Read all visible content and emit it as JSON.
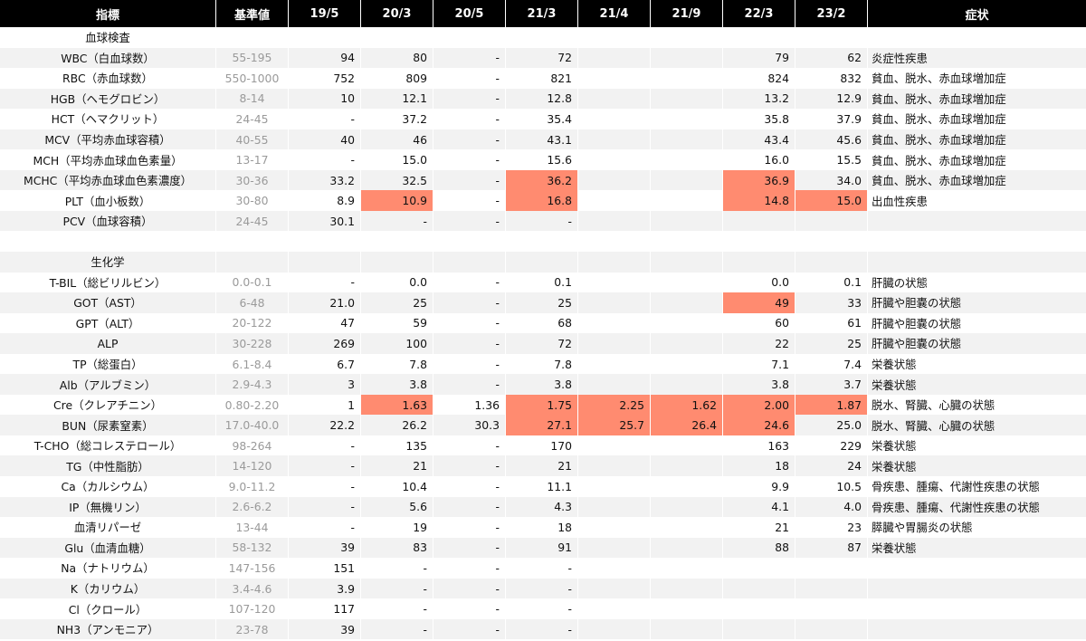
{
  "header": {
    "name": "指標",
    "ref": "基準値",
    "dates": [
      "19/5",
      "20/3",
      "20/5",
      "21/3",
      "21/4",
      "21/9",
      "22/3",
      "23/2"
    ],
    "symptom": "症状"
  },
  "highlight_color": "#ff8b70",
  "rows": [
    {
      "name": "血球検査",
      "ref": "",
      "values": [
        "",
        "",
        "",
        "",
        "",
        "",
        "",
        ""
      ],
      "highlight": [],
      "symptom": ""
    },
    {
      "name": "WBC（白血球数）",
      "ref": "55-195",
      "values": [
        "94",
        "80",
        "-",
        "72",
        "",
        "",
        "79",
        "62"
      ],
      "highlight": [],
      "symptom": "炎症性疾患"
    },
    {
      "name": "RBC（赤血球数）",
      "ref": "550-1000",
      "values": [
        "752",
        "809",
        "-",
        "821",
        "",
        "",
        "824",
        "832"
      ],
      "highlight": [],
      "symptom": "貧血、脱水、赤血球増加症"
    },
    {
      "name": "HGB（ヘモグロビン）",
      "ref": "8-14",
      "values": [
        "10",
        "12.1",
        "-",
        "12.8",
        "",
        "",
        "13.2",
        "12.9"
      ],
      "highlight": [],
      "symptom": "貧血、脱水、赤血球増加症"
    },
    {
      "name": "HCT（ヘマクリット）",
      "ref": "24-45",
      "values": [
        "-",
        "37.2",
        "-",
        "35.4",
        "",
        "",
        "35.8",
        "37.9"
      ],
      "highlight": [],
      "symptom": "貧血、脱水、赤血球増加症"
    },
    {
      "name": "MCV（平均赤血球容積）",
      "ref": "40-55",
      "values": [
        "40",
        "46",
        "-",
        "43.1",
        "",
        "",
        "43.4",
        "45.6"
      ],
      "highlight": [],
      "symptom": "貧血、脱水、赤血球増加症"
    },
    {
      "name": "MCH（平均赤血球血色素量）",
      "ref": "13-17",
      "values": [
        "-",
        "15.0",
        "-",
        "15.6",
        "",
        "",
        "16.0",
        "15.5"
      ],
      "highlight": [],
      "symptom": "貧血、脱水、赤血球増加症"
    },
    {
      "name": "MCHC（平均赤血球血色素濃度）",
      "ref": "30-36",
      "values": [
        "33.2",
        "32.5",
        "-",
        "36.2",
        "",
        "",
        "36.9",
        "34.0"
      ],
      "highlight": [
        3,
        6
      ],
      "symptom": "貧血、脱水、赤血球増加症"
    },
    {
      "name": "PLT（血小板数）",
      "ref": "30-80",
      "values": [
        "8.9",
        "10.9",
        "-",
        "16.8",
        "",
        "",
        "14.8",
        "15.0"
      ],
      "highlight": [
        1,
        3,
        6,
        7
      ],
      "symptom": "出血性疾患"
    },
    {
      "name": "PCV（血球容積）",
      "ref": "24-45",
      "values": [
        "30.1",
        "-",
        "-",
        "-",
        "",
        "",
        "",
        ""
      ],
      "highlight": [],
      "symptom": ""
    },
    {
      "name": "",
      "ref": "",
      "values": [
        "",
        "",
        "",
        "",
        "",
        "",
        "",
        ""
      ],
      "highlight": [],
      "symptom": ""
    },
    {
      "name": "生化学",
      "ref": "",
      "values": [
        "",
        "",
        "",
        "",
        "",
        "",
        "",
        ""
      ],
      "highlight": [],
      "symptom": ""
    },
    {
      "name": "T-BIL（総ビリルビン）",
      "ref": "0.0-0.1",
      "values": [
        "-",
        "0.0",
        "-",
        "0.1",
        "",
        "",
        "0.0",
        "0.1"
      ],
      "highlight": [],
      "symptom": "肝臓の状態"
    },
    {
      "name": "GOT（AST）",
      "ref": "6-48",
      "values": [
        "21.0",
        "25",
        "-",
        "25",
        "",
        "",
        "49",
        "33"
      ],
      "highlight": [
        6
      ],
      "symptom": "肝臓や胆嚢の状態"
    },
    {
      "name": "GPT（ALT）",
      "ref": "20-122",
      "values": [
        "47",
        "59",
        "-",
        "68",
        "",
        "",
        "60",
        "61"
      ],
      "highlight": [],
      "symptom": "肝臓や胆嚢の状態"
    },
    {
      "name": "ALP",
      "ref": "30-228",
      "values": [
        "269",
        "100",
        "-",
        "72",
        "",
        "",
        "22",
        "25"
      ],
      "highlight": [],
      "symptom": "肝臓や胆嚢の状態"
    },
    {
      "name": "TP（総蛋白）",
      "ref": "6.1-8.4",
      "values": [
        "6.7",
        "7.8",
        "-",
        "7.8",
        "",
        "",
        "7.1",
        "7.4"
      ],
      "highlight": [],
      "symptom": "栄養状態"
    },
    {
      "name": "Alb（アルブミン）",
      "ref": "2.9-4.3",
      "values": [
        "3",
        "3.8",
        "-",
        "3.8",
        "",
        "",
        "3.8",
        "3.7"
      ],
      "highlight": [],
      "symptom": "栄養状態"
    },
    {
      "name": "Cre（クレアチニン）",
      "ref": "0.80-2.20",
      "values": [
        "1",
        "1.63",
        "1.36",
        "1.75",
        "2.25",
        "1.62",
        "2.00",
        "1.87"
      ],
      "highlight": [
        1,
        3,
        4,
        5,
        6,
        7
      ],
      "symptom": "脱水、腎臓、心臓の状態"
    },
    {
      "name": "BUN（尿素窒素）",
      "ref": "17.0-40.0",
      "values": [
        "22.2",
        "26.2",
        "30.3",
        "27.1",
        "25.7",
        "26.4",
        "24.6",
        "25.0"
      ],
      "highlight": [
        3,
        4,
        5,
        6
      ],
      "symptom": "脱水、腎臓、心臓の状態"
    },
    {
      "name": "T-CHO（総コレステロール）",
      "ref": "98-264",
      "values": [
        "-",
        "135",
        "-",
        "170",
        "",
        "",
        "163",
        "229"
      ],
      "highlight": [],
      "symptom": "栄養状態"
    },
    {
      "name": "TG（中性脂肪）",
      "ref": "14-120",
      "values": [
        "-",
        "21",
        "-",
        "21",
        "",
        "",
        "18",
        "24"
      ],
      "highlight": [],
      "symptom": "栄養状態"
    },
    {
      "name": "Ca（カルシウム）",
      "ref": "9.0-11.2",
      "values": [
        "-",
        "10.4",
        "-",
        "11.1",
        "",
        "",
        "9.9",
        "10.5"
      ],
      "highlight": [],
      "symptom": "骨疾患、腫瘍、代謝性疾患の状態"
    },
    {
      "name": "IP（無機リン）",
      "ref": "2.6-6.2",
      "values": [
        "-",
        "5.6",
        "-",
        "4.3",
        "",
        "",
        "4.1",
        "4.0"
      ],
      "highlight": [],
      "symptom": "骨疾患、腫瘍、代謝性疾患の状態"
    },
    {
      "name": "血清リパーゼ",
      "ref": "13-44",
      "values": [
        "-",
        "19",
        "-",
        "18",
        "",
        "",
        "21",
        "23"
      ],
      "highlight": [],
      "symptom": "膵臓や胃腸炎の状態"
    },
    {
      "name": "Glu（血清血糖）",
      "ref": "58-132",
      "values": [
        "39",
        "83",
        "-",
        "91",
        "",
        "",
        "88",
        "87"
      ],
      "highlight": [],
      "symptom": "栄養状態"
    },
    {
      "name": "Na（ナトリウム）",
      "ref": "147-156",
      "values": [
        "151",
        "-",
        "-",
        "-",
        "",
        "",
        "",
        ""
      ],
      "highlight": [],
      "symptom": ""
    },
    {
      "name": "K（カリウム）",
      "ref": "3.4-4.6",
      "values": [
        "3.9",
        "-",
        "-",
        "-",
        "",
        "",
        "",
        ""
      ],
      "highlight": [],
      "symptom": ""
    },
    {
      "name": "Cl（クロール）",
      "ref": "107-120",
      "values": [
        "117",
        "-",
        "-",
        "-",
        "",
        "",
        "",
        ""
      ],
      "highlight": [],
      "symptom": ""
    },
    {
      "name": "NH3（アンモニア）",
      "ref": "23-78",
      "values": [
        "39",
        "-",
        "-",
        "-",
        "",
        "",
        "",
        ""
      ],
      "highlight": [],
      "symptom": ""
    }
  ]
}
